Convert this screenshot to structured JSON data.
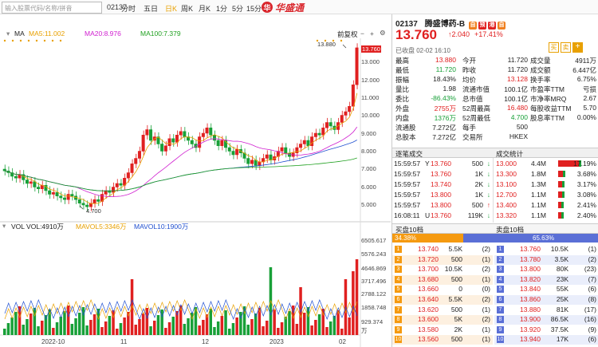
{
  "search_placeholder": "输入股票代码/名称/拼音",
  "code": "02137",
  "toolbar": [
    "分时",
    "五日",
    "日K",
    "周K",
    "月K",
    "1分",
    "5分",
    "15分"
  ],
  "toolbar_active": "日K",
  "logo_text": "华盛通",
  "stock": {
    "code": "02137",
    "name": "腾盛博药-B",
    "badges": [
      "自",
      "预",
      "港",
      "自"
    ],
    "price": "13.760",
    "change": "2.040",
    "change_pct": "+17.41%",
    "status": "已收盘 02-02 16:10"
  },
  "ma_bar": {
    "label": "MA",
    "ma5": "MA5:11.002",
    "ma20": "MA20:8.976",
    "ma100": "MA100:7.379",
    "fq": "前复权"
  },
  "price_axis": [
    "13.760",
    "13.000",
    "12.000",
    "11.000",
    "10.000",
    "9.000",
    "8.000",
    "7.000",
    "6.000",
    "5.000"
  ],
  "high_label": "13.880",
  "low_label": "4.700",
  "vol_bar": {
    "vol": "VOL  VOL:4910万",
    "mavol5": "MAVOL5:3346万",
    "mavol10": "MAVOL10:1900万"
  },
  "vol_axis": [
    "6505.617",
    "5576.243",
    "4646.869",
    "3717.496",
    "2788.122",
    "1858.748",
    "929.374",
    "万"
  ],
  "dates": [
    "2022-10",
    "11",
    "12",
    "2023",
    "02"
  ],
  "quote_rows": [
    [
      "最高",
      "13.880",
      "今开",
      "11.720",
      "成交量",
      "4911万"
    ],
    [
      "最低",
      "11.720",
      "昨收",
      "11.720",
      "成交额",
      "6.447亿"
    ],
    [
      "振幅",
      "18.43%",
      "均价",
      "13.128",
      "换手率",
      "6.75%"
    ],
    [
      "量比",
      "1.98",
      "流通市值",
      "100.1亿",
      "市盈率TTM",
      "亏损"
    ],
    [
      "委比",
      "-86.43%",
      "总市值",
      "100.1亿",
      "市净率MRQ",
      "2.67"
    ],
    [
      "外盘",
      "2755万",
      "52周最高",
      "16.480",
      "每股收益TTM",
      "5.70"
    ],
    [
      "内盘",
      "1376万",
      "52周最低",
      "4.700",
      "股息率TTM",
      "0.00%"
    ],
    [
      "流通股",
      "7.272亿",
      "每手",
      "500",
      "",
      ""
    ],
    [
      "总股本",
      "7.272亿",
      "交易所",
      "HKEX",
      "",
      ""
    ]
  ],
  "trades_title": "逐笔成交",
  "stats_title": "成交统计",
  "trades": [
    [
      "15:59:57",
      "Y",
      "13.760",
      "500",
      "down"
    ],
    [
      "15:59:57",
      "",
      "13.760",
      "1K",
      "down"
    ],
    [
      "15:59:57",
      "",
      "13.740",
      "2K",
      "down"
    ],
    [
      "15:59:57",
      "",
      "13.800",
      "1K",
      "down"
    ],
    [
      "15:59:57",
      "",
      "13.800",
      "500",
      "up"
    ],
    [
      "16:08:11",
      "U",
      "13.760",
      "119K",
      "down"
    ]
  ],
  "stats": [
    [
      "13.000",
      "4.4M",
      "17.19%",
      0.1719
    ],
    [
      "13.300",
      "1.8M",
      "3.68%",
      0.0368
    ],
    [
      "13.100",
      "1.3M",
      "3.17%",
      0.0317
    ],
    [
      "12.700",
      "1.1M",
      "3.08%",
      0.0308
    ],
    [
      "13.400",
      "1.1M",
      "2.41%",
      0.0241
    ],
    [
      "13.320",
      "1.1M",
      "2.40%",
      0.024
    ]
  ],
  "bid_title": "买盘10档",
  "ask_title": "卖盘10档",
  "bid_pct": "34.38%",
  "ask_pct": "65.63%",
  "bid_ratio": 0.3438,
  "bids": [
    [
      "1",
      "13.740",
      "5.5K",
      "(2)"
    ],
    [
      "2",
      "13.720",
      "500",
      "(1)"
    ],
    [
      "3",
      "13.700",
      "10.5K",
      "(2)"
    ],
    [
      "4",
      "13.680",
      "500",
      "(1)"
    ],
    [
      "5",
      "13.660",
      "0",
      "(0)"
    ],
    [
      "6",
      "13.640",
      "5.5K",
      "(2)"
    ],
    [
      "7",
      "13.620",
      "500",
      "(1)"
    ],
    [
      "8",
      "13.600",
      "5K",
      "(2)"
    ],
    [
      "9",
      "13.580",
      "2K",
      "(1)"
    ],
    [
      "10",
      "13.560",
      "500",
      "(1)"
    ]
  ],
  "asks": [
    [
      "1",
      "13.760",
      "10.5K",
      "(1)"
    ],
    [
      "2",
      "13.780",
      "3.5K",
      "(2)"
    ],
    [
      "3",
      "13.800",
      "80K",
      "(23)"
    ],
    [
      "4",
      "13.820",
      "23K",
      "(7)"
    ],
    [
      "5",
      "13.840",
      "55K",
      "(6)"
    ],
    [
      "6",
      "13.860",
      "25K",
      "(8)"
    ],
    [
      "7",
      "13.880",
      "81K",
      "(17)"
    ],
    [
      "8",
      "13.900",
      "86.5K",
      "(16)"
    ],
    [
      "9",
      "13.920",
      "37.5K",
      "(9)"
    ],
    [
      "10",
      "13.940",
      "17K",
      "(6)"
    ]
  ],
  "colors": {
    "up": "#e02020",
    "down": "#18a038",
    "ma5": "#e8a000",
    "ma20": "#d020d0",
    "ma100": "#20a020",
    "accent": "#e8a000"
  }
}
